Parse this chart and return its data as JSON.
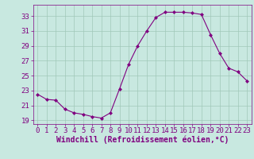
{
  "x": [
    0,
    1,
    2,
    3,
    4,
    5,
    6,
    7,
    8,
    9,
    10,
    11,
    12,
    13,
    14,
    15,
    16,
    17,
    18,
    19,
    20,
    21,
    22,
    23
  ],
  "y": [
    22.5,
    21.8,
    21.7,
    20.5,
    20.0,
    19.8,
    19.5,
    19.3,
    20.0,
    23.2,
    26.5,
    29.0,
    31.0,
    32.8,
    33.5,
    33.5,
    33.5,
    33.4,
    33.2,
    30.5,
    28.0,
    26.0,
    25.5,
    24.3
  ],
  "line_color": "#800080",
  "marker": "D",
  "marker_size": 2.0,
  "bg_color": "#c8e8e0",
  "grid_color": "#a0c8b8",
  "xlabel": "Windchill (Refroidissement éolien,°C)",
  "xlabel_color": "#800080",
  "xlabel_fontsize": 7,
  "yticks": [
    19,
    21,
    23,
    25,
    27,
    29,
    31,
    33
  ],
  "xtick_labels": [
    "0",
    "1",
    "2",
    "3",
    "4",
    "5",
    "6",
    "7",
    "8",
    "9",
    "10",
    "11",
    "12",
    "13",
    "14",
    "15",
    "16",
    "17",
    "18",
    "19",
    "20",
    "21",
    "22",
    "23"
  ],
  "ylim": [
    18.5,
    34.5
  ],
  "xlim": [
    -0.5,
    23.5
  ],
  "tick_color": "#800080",
  "tick_fontsize": 6.5,
  "ytick_fontsize": 6.5
}
